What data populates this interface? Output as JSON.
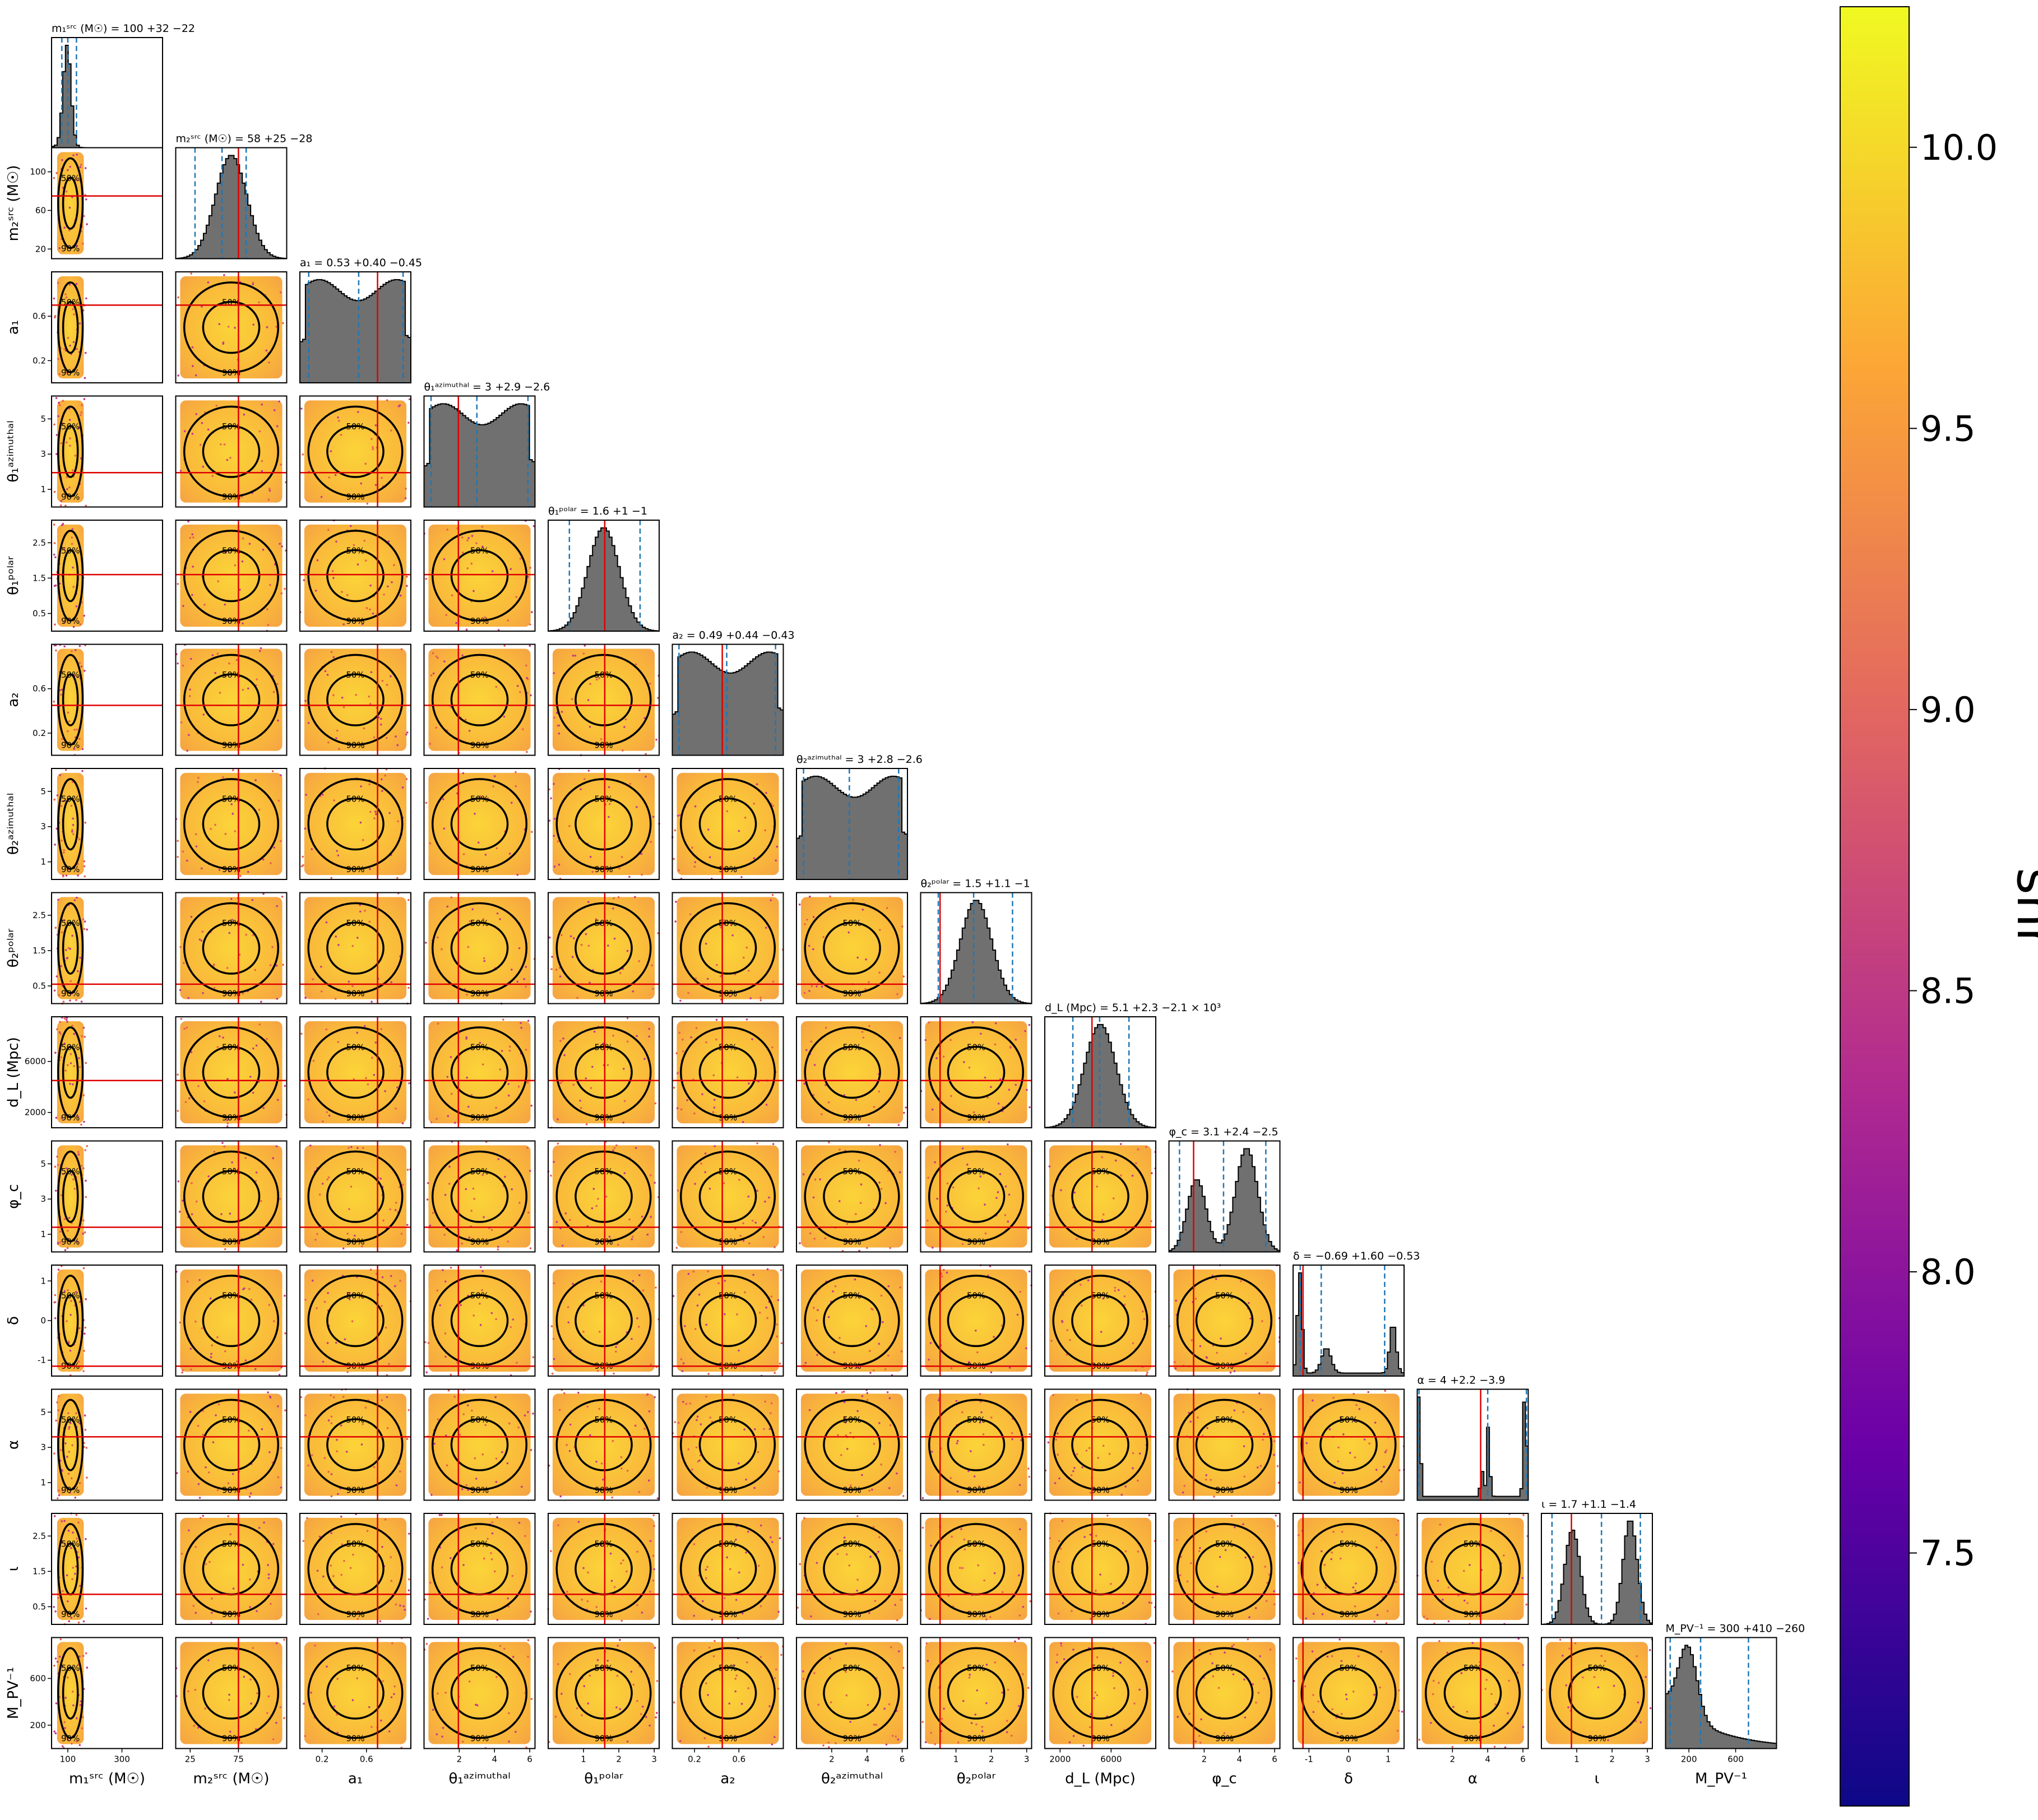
{
  "chart_data": {
    "type": "corner-plot",
    "parameters": [
      {
        "key": "m1",
        "axis_label": "m₁ˢʳᶜ (M☉)",
        "title": "m₁ˢʳᶜ (M☉) = 100 +32 −22",
        "range": [
          40,
          450
        ],
        "ticks": [
          100,
          300
        ],
        "median": 100,
        "q_low": 78,
        "q_high": 132,
        "truth": null,
        "shape": "mass1"
      },
      {
        "key": "m2",
        "axis_label": "m₂ˢʳᶜ (M☉)",
        "title": "m₂ˢʳᶜ (M☉) = 58 +25 −28",
        "range": [
          10,
          125
        ],
        "ticks": [
          25,
          75
        ],
        "median": 58,
        "q_low": 30,
        "q_high": 83,
        "truth": 75,
        "shape": "gauss"
      },
      {
        "key": "a1",
        "axis_label": "a₁",
        "title": "a₁ = 0.53 +0.40 −0.45",
        "range": [
          0,
          1
        ],
        "ticks": [
          0.2,
          0.6
        ],
        "median": 0.53,
        "q_low": 0.08,
        "q_high": 0.93,
        "truth": 0.7,
        "shape": "flat"
      },
      {
        "key": "t1az",
        "axis_label": "θ₁ᵃᶻⁱᵐᵘᵗʰᵃˡ",
        "title": "θ₁ᵃᶻⁱᵐᵘᵗʰᵃˡ = 3 +2.9 −2.6",
        "range": [
          0,
          6.3
        ],
        "ticks": [
          2,
          4,
          6
        ],
        "median": 3.0,
        "q_low": 0.4,
        "q_high": 5.9,
        "truth": 1.95,
        "shape": "flat"
      },
      {
        "key": "t1po",
        "axis_label": "θ₁ᵖᵒˡᵃʳ",
        "title": "θ₁ᵖᵒˡᵃʳ = 1.6 +1 −1",
        "range": [
          0,
          3.14
        ],
        "ticks": [
          1,
          2,
          3
        ],
        "median": 1.6,
        "q_low": 0.6,
        "q_high": 2.6,
        "truth": 1.6,
        "shape": "gauss"
      },
      {
        "key": "a2",
        "axis_label": "a₂",
        "title": "a₂ = 0.49 +0.44 −0.43",
        "range": [
          0,
          1
        ],
        "ticks": [
          0.2,
          0.6
        ],
        "median": 0.49,
        "q_low": 0.06,
        "q_high": 0.93,
        "truth": 0.45,
        "shape": "flat"
      },
      {
        "key": "t2az",
        "axis_label": "θ₂ᵃᶻⁱᵐᵘᵗʰᵃˡ",
        "title": "θ₂ᵃᶻⁱᵐᵘᵗʰᵃˡ = 3 +2.8 −2.6",
        "range": [
          0,
          6.3
        ],
        "ticks": [
          2,
          4,
          6
        ],
        "median": 3.0,
        "q_low": 0.4,
        "q_high": 5.8,
        "truth": null,
        "shape": "flat"
      },
      {
        "key": "t2po",
        "axis_label": "θ₂ᵖᵒˡᵃʳ",
        "title": "θ₂ᵖᵒˡᵃʳ = 1.5 +1.1 −1",
        "range": [
          0,
          3.14
        ],
        "ticks": [
          1,
          2,
          3
        ],
        "median": 1.5,
        "q_low": 0.5,
        "q_high": 2.6,
        "truth": 0.55,
        "shape": "gauss"
      },
      {
        "key": "dL",
        "axis_label": "d_L (Mpc)",
        "title": "d_L (Mpc) = 5.1 +2.3 −2.1 × 10³",
        "range": [
          800,
          9500
        ],
        "ticks": [
          2000,
          6000
        ],
        "median": 5100,
        "q_low": 3000,
        "q_high": 7400,
        "truth": 4500,
        "shape": "gauss"
      },
      {
        "key": "phic",
        "axis_label": "φ_c",
        "title": "φ_c = 3.1 +2.4 −2.5",
        "range": [
          0,
          6.3
        ],
        "ticks": [
          2,
          4,
          6
        ],
        "median": 3.1,
        "q_low": 0.6,
        "q_high": 5.5,
        "truth": 1.4,
        "shape": "bimodal"
      },
      {
        "key": "delta",
        "axis_label": "δ",
        "title": "δ = −0.69 +1.60 −0.53",
        "range": [
          -1.4,
          1.4
        ],
        "ticks": [
          -1,
          0,
          1
        ],
        "median": -0.69,
        "q_low": -1.22,
        "q_high": 0.91,
        "truth": -1.15,
        "shape": "edges"
      },
      {
        "key": "alpha",
        "axis_label": "α",
        "title": "α = 4 +2.2 −3.9",
        "range": [
          0,
          6.3
        ],
        "ticks": [
          2,
          4,
          6
        ],
        "median": 4.0,
        "q_low": 0.1,
        "q_high": 6.2,
        "truth": 3.6,
        "shape": "spikes"
      },
      {
        "key": "iota",
        "axis_label": "ι",
        "title": "ι = 1.7 +1.1 −1.4",
        "range": [
          0,
          3.14
        ],
        "ticks": [
          1,
          2,
          3
        ],
        "median": 1.7,
        "q_low": 0.3,
        "q_high": 2.8,
        "truth": 0.85,
        "shape": "bimodal2"
      },
      {
        "key": "mpv",
        "axis_label": "M_PV⁻¹",
        "title": "M_PV⁻¹ = 300 +410 −260",
        "range": [
          0,
          950
        ],
        "ticks": [
          200,
          600
        ],
        "median": 300,
        "q_low": 40,
        "q_high": 710,
        "truth": null,
        "shape": "decay"
      }
    ],
    "y_ticks": {
      "m2": [
        20,
        60,
        100
      ],
      "a1": [
        0.2,
        0.6
      ],
      "t1az": [
        1,
        3,
        5
      ],
      "t1po": [
        0.5,
        1.5,
        2.5
      ],
      "a2": [
        0.2,
        0.6
      ],
      "t2az": [
        1,
        3,
        5
      ],
      "t2po": [
        0.5,
        1.5,
        2.5
      ],
      "dL": [
        2000,
        6000
      ],
      "phic": [
        1,
        3,
        5
      ],
      "delta": [
        -1,
        0,
        1
      ],
      "alpha": [
        1,
        3,
        5
      ],
      "iota": [
        0.5,
        1.5,
        2.5
      ],
      "mpv": [
        200,
        600
      ]
    },
    "contour_labels": [
      "50%",
      "90%"
    ],
    "colorbar": {
      "label": "snr",
      "range": [
        7.05,
        10.25
      ],
      "ticks": [
        7.5,
        8.0,
        8.5,
        9.0,
        9.5,
        10.0
      ],
      "tick_labels": [
        "7.5",
        "8.0",
        "8.5",
        "9.0",
        "9.5",
        "10.0"
      ],
      "colors": [
        "#0d0887",
        "#6a00a8",
        "#b12a90",
        "#e16462",
        "#fca636",
        "#f0f921"
      ]
    },
    "colors": {
      "hist": "#707070",
      "truth": "#e00000",
      "quantile": "#1f77b4",
      "contour": "#000000"
    }
  }
}
